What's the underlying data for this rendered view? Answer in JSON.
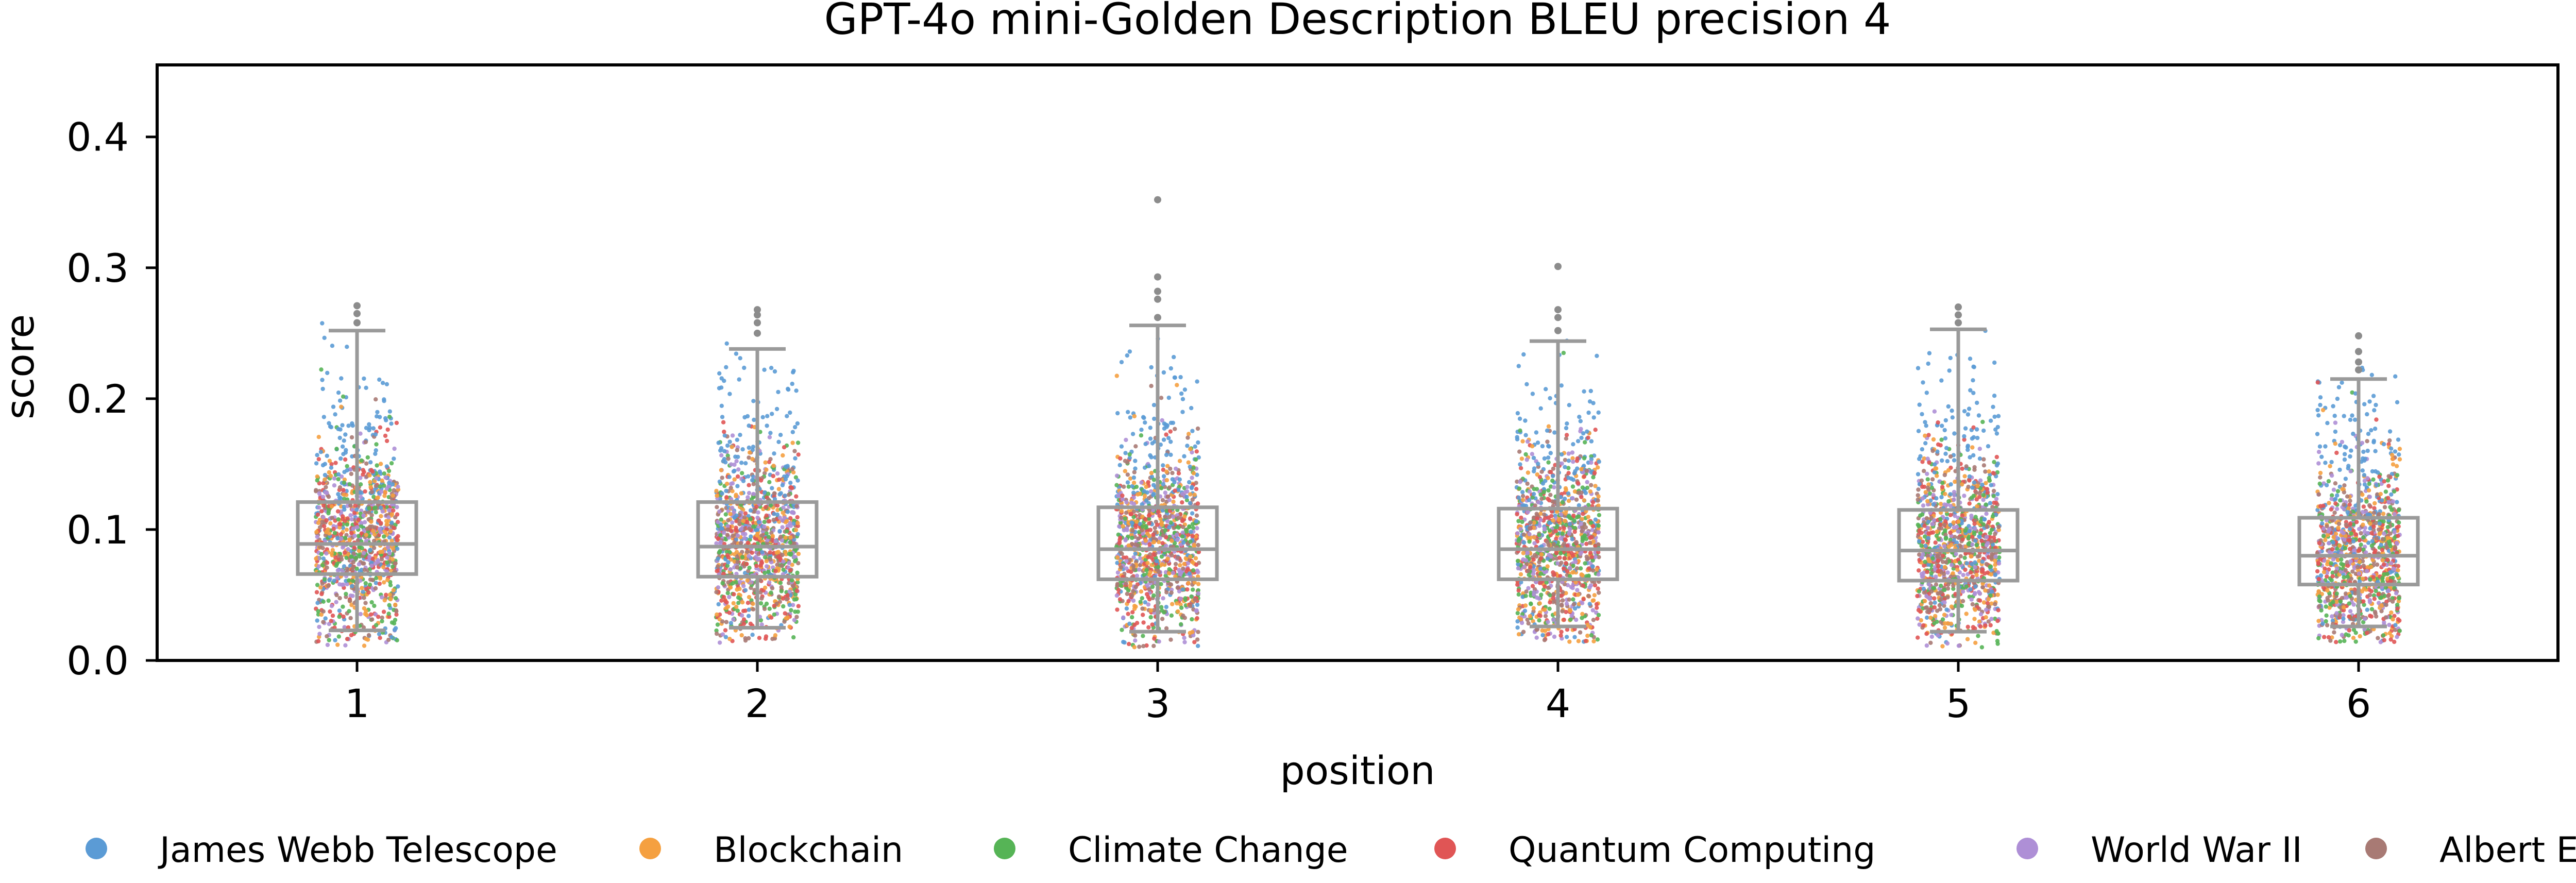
{
  "chart_data": {
    "type": "box+strip",
    "title": "GPT-4o mini-Golden Description BLEU precision 4",
    "xlabel": "position",
    "ylabel": "score",
    "categories": [
      "1",
      "2",
      "3",
      "4",
      "5",
      "6"
    ],
    "ylim": [
      0.0,
      0.455
    ],
    "yticks": [
      0.0,
      0.1,
      0.2,
      0.3,
      0.4
    ],
    "ytick_labels": [
      "0.0",
      "0.1",
      "0.2",
      "0.3",
      "0.4"
    ],
    "grid": false,
    "legend_position": "bottom",
    "legend": [
      {
        "name": "James Webb Telescope",
        "color": "#5b9bd5"
      },
      {
        "name": "Blockchain",
        "color": "#f5a040"
      },
      {
        "name": "Climate Change",
        "color": "#56b456"
      },
      {
        "name": "Quantum Computing",
        "color": "#e05555"
      },
      {
        "name": "World War II",
        "color": "#ae8fd6"
      },
      {
        "name": "Albert Einstein",
        "color": "#a87a74"
      }
    ],
    "boxes": [
      {
        "position": "1",
        "whisker_low": 0.023,
        "q1": 0.066,
        "median": 0.089,
        "q3": 0.121,
        "whisker_high": 0.252,
        "fliers": [
          0.258,
          0.265,
          0.271
        ]
      },
      {
        "position": "2",
        "whisker_low": 0.025,
        "q1": 0.064,
        "median": 0.087,
        "q3": 0.121,
        "whisker_high": 0.238,
        "fliers": [
          0.25,
          0.258,
          0.264,
          0.268
        ]
      },
      {
        "position": "3",
        "whisker_low": 0.022,
        "q1": 0.062,
        "median": 0.085,
        "q3": 0.117,
        "whisker_high": 0.256,
        "fliers": [
          0.262,
          0.276,
          0.282,
          0.293,
          0.352
        ]
      },
      {
        "position": "4",
        "whisker_low": 0.026,
        "q1": 0.062,
        "median": 0.085,
        "q3": 0.116,
        "whisker_high": 0.244,
        "fliers": [
          0.252,
          0.262,
          0.268,
          0.301
        ]
      },
      {
        "position": "5",
        "whisker_low": 0.022,
        "q1": 0.061,
        "median": 0.084,
        "q3": 0.115,
        "whisker_high": 0.253,
        "fliers": [
          0.258,
          0.264,
          0.27
        ]
      },
      {
        "position": "6",
        "whisker_low": 0.026,
        "q1": 0.058,
        "median": 0.08,
        "q3": 0.109,
        "whisker_high": 0.215,
        "fliers": [
          0.222,
          0.228,
          0.236,
          0.248
        ]
      }
    ]
  }
}
